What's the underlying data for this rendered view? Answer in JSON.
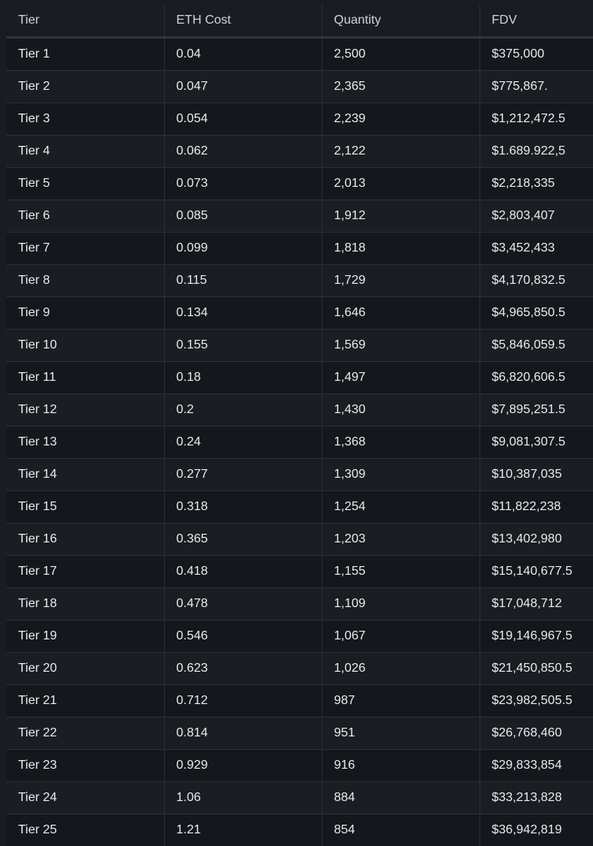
{
  "table": {
    "headers": [
      "Tier",
      "ETH Cost",
      "Quantity",
      "FDV"
    ],
    "rows": [
      [
        "Tier 1",
        "0.04",
        "2,500",
        "$375,000"
      ],
      [
        "Tier 2",
        "0.047",
        "2,365",
        "$775,867."
      ],
      [
        "Tier 3",
        "0.054",
        "2,239",
        "$1,212,472.5"
      ],
      [
        "Tier 4",
        "0.062",
        "2,122",
        "$1.689.922,5"
      ],
      [
        "Tier 5",
        "0.073",
        "2,013",
        "$2,218,335"
      ],
      [
        "Tier 6",
        "0.085",
        "1,912",
        "$2,803,407"
      ],
      [
        "Tier 7",
        "0.099",
        "1,818",
        "$3,452,433"
      ],
      [
        "Tier 8",
        "0.115",
        "1,729",
        "$4,170,832.5"
      ],
      [
        "Tier 9",
        "0.134",
        "1,646",
        "$4,965,850.5"
      ],
      [
        "Tier 10",
        "0.155",
        "1,569",
        "$5,846,059.5"
      ],
      [
        "Tier 11",
        "0.18",
        "1,497",
        "$6,820,606.5"
      ],
      [
        "Tier 12",
        "0.2",
        "1,430",
        "$7,895,251.5"
      ],
      [
        "Tier 13",
        "0.24",
        "1,368",
        "$9,081,307.5"
      ],
      [
        "Tier 14",
        "0.277",
        "1,309",
        "$10,387,035"
      ],
      [
        "Tier 15",
        "0.318",
        "1,254",
        "$11,822,238"
      ],
      [
        "Tier 16",
        "0.365",
        "1,203",
        "$13,402,980"
      ],
      [
        "Tier 17",
        "0.418",
        "1,155",
        "$15,140,677.5"
      ],
      [
        "Tier 18",
        "0.478",
        "1,109",
        "$17,048,712"
      ],
      [
        "Tier 19",
        "0.546",
        "1,067",
        "$19,146,967.5"
      ],
      [
        "Tier 20",
        "0.623",
        "1,026",
        "$21,450,850.5"
      ],
      [
        "Tier 21",
        "0.712",
        "987",
        "$23,982,505.5"
      ],
      [
        "Tier 22",
        "0.814",
        "951",
        "$26,768,460"
      ],
      [
        "Tier 23",
        "0.929",
        "916",
        "$29,833,854"
      ],
      [
        "Tier 24",
        "1.06",
        "884",
        "$33,213,828"
      ],
      [
        "Tier 25",
        "1.21",
        "854",
        "$36,942,819"
      ]
    ]
  }
}
